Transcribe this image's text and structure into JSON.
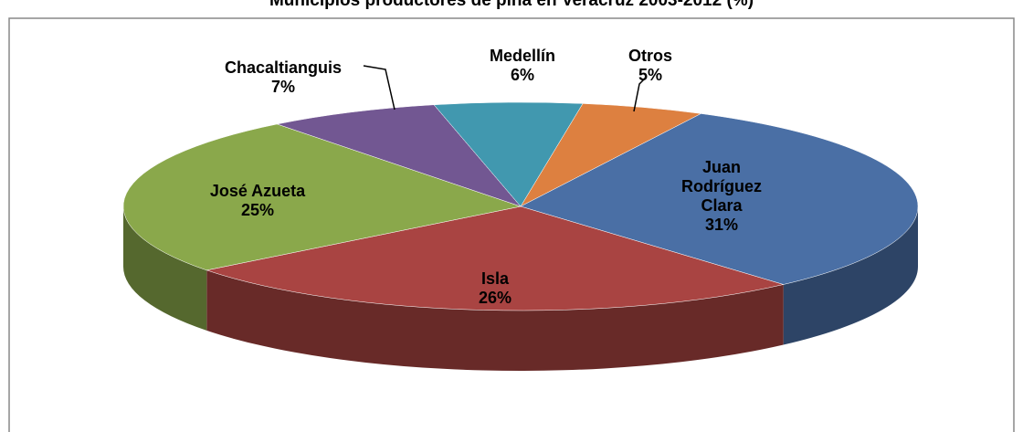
{
  "chart_data": {
    "type": "pie",
    "title": "Municipios productores de piña en Veracruz 2003-2012 (%)",
    "categories": [
      "Otros",
      "Juan Rodríguez Clara",
      "Isla",
      "José Azueta",
      "Chacaltianguis",
      "Medellín"
    ],
    "values": [
      5,
      31,
      26,
      25,
      7,
      6
    ],
    "value_labels": [
      "5%",
      "31%",
      "26%",
      "25%",
      "7%",
      "6%"
    ],
    "colors": [
      "#dd8040",
      "#4a6fa5",
      "#a94442",
      "#8aa84b",
      "#725792",
      "#4198af"
    ]
  }
}
